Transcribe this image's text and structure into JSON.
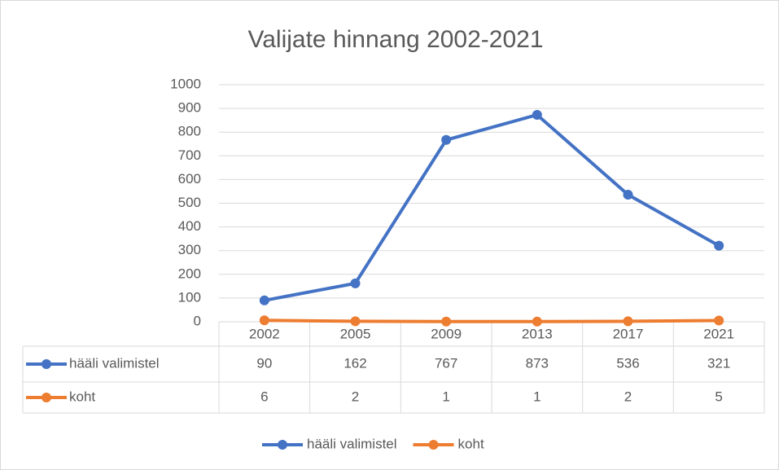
{
  "chart_data": {
    "type": "line",
    "title": "Valijate hinnang 2002-2021",
    "categories": [
      "2002",
      "2005",
      "2009",
      "2013",
      "2017",
      "2021"
    ],
    "series": [
      {
        "name": "hääli valimistel",
        "color": "#4472c4",
        "values": [
          90,
          162,
          767,
          873,
          536,
          321
        ]
      },
      {
        "name": "koht",
        "color": "#ed7d31",
        "values": [
          6,
          2,
          1,
          1,
          2,
          5
        ]
      }
    ],
    "ylim": [
      0,
      1000
    ],
    "yticks": [
      0,
      100,
      200,
      300,
      400,
      500,
      600,
      700,
      800,
      900,
      1000
    ],
    "grid": true,
    "legend": "bottom",
    "data_table": true
  }
}
